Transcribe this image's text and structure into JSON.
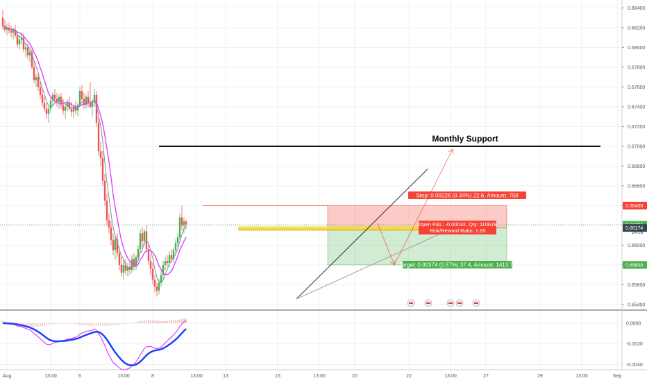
{
  "chart_data": {
    "type": "candlestick",
    "price_axis": {
      "ticks": [
        "0.68400",
        "0.68200",
        "0.68000",
        "0.67800",
        "0.67600",
        "0.67400",
        "0.67200",
        "0.67000",
        "0.66800",
        "0.66600",
        "0.66400",
        "0.66200",
        "0.66000",
        "0.65800",
        "0.65600",
        "0.65400"
      ],
      "range": [
        0.6535,
        0.6848
      ],
      "stop_label": "0.66400",
      "current_label": "0.66206",
      "current_countdown": "24:05",
      "entry_label": "0.66174",
      "target_label": "0.65800"
    },
    "macd_axis": {
      "ticks": [
        "0.0000",
        "-0.0020",
        "-0.0040"
      ],
      "range": [
        -0.0045,
        0.0012
      ]
    },
    "time_axis": {
      "ticks": [
        {
          "label": "Aug",
          "bar": 2
        },
        {
          "label": "13:00",
          "bar": 23
        },
        {
          "label": "6",
          "bar": 37
        },
        {
          "label": "13:00",
          "bar": 58
        },
        {
          "label": "8",
          "bar": 72
        },
        {
          "label": "13:00",
          "bar": 93
        },
        {
          "label": "13",
          "bar": 107
        },
        {
          "label": "15",
          "bar": 132
        },
        {
          "label": "13:00",
          "bar": 152
        },
        {
          "label": "20",
          "bar": 169
        },
        {
          "label": "22",
          "bar": 195
        },
        {
          "label": "13:00",
          "bar": 215
        },
        {
          "label": "27",
          "bar": 232
        },
        {
          "label": "29",
          "bar": 258
        },
        {
          "label": "13:00",
          "bar": 278
        },
        {
          "label": "Sep",
          "bar": 295
        }
      ]
    },
    "candles": [
      [
        0.683,
        0.6838,
        0.6818,
        0.6822
      ],
      [
        0.6822,
        0.6828,
        0.6815,
        0.6818
      ],
      [
        0.6818,
        0.6824,
        0.6812,
        0.682
      ],
      [
        0.682,
        0.6825,
        0.6814,
        0.6817
      ],
      [
        0.6817,
        0.6822,
        0.681,
        0.6815
      ],
      [
        0.6815,
        0.682,
        0.6808,
        0.6818
      ],
      [
        0.6818,
        0.6823,
        0.681,
        0.6812
      ],
      [
        0.6812,
        0.6816,
        0.68,
        0.6803
      ],
      [
        0.6803,
        0.6812,
        0.6798,
        0.6808
      ],
      [
        0.6808,
        0.6815,
        0.6803,
        0.681
      ],
      [
        0.681,
        0.6814,
        0.6795,
        0.6798
      ],
      [
        0.6798,
        0.6804,
        0.679,
        0.68
      ],
      [
        0.68,
        0.6804,
        0.6788,
        0.6792
      ],
      [
        0.6792,
        0.6798,
        0.6785,
        0.6795
      ],
      [
        0.6795,
        0.6798,
        0.6778,
        0.678
      ],
      [
        0.678,
        0.6786,
        0.6764,
        0.6767
      ],
      [
        0.6767,
        0.6773,
        0.676,
        0.677
      ],
      [
        0.677,
        0.6775,
        0.6756,
        0.676
      ],
      [
        0.676,
        0.6766,
        0.6748,
        0.6752
      ],
      [
        0.6752,
        0.6758,
        0.674,
        0.6744
      ],
      [
        0.6744,
        0.675,
        0.6735,
        0.6738
      ],
      [
        0.6738,
        0.6744,
        0.6728,
        0.6733
      ],
      [
        0.6733,
        0.674,
        0.6724,
        0.6738
      ],
      [
        0.6738,
        0.675,
        0.6734,
        0.6746
      ],
      [
        0.6746,
        0.6755,
        0.674,
        0.6752
      ],
      [
        0.6752,
        0.6758,
        0.6744,
        0.6748
      ],
      [
        0.6748,
        0.6754,
        0.674,
        0.6745
      ],
      [
        0.6745,
        0.6752,
        0.6738,
        0.675
      ],
      [
        0.675,
        0.6754,
        0.6738,
        0.6742
      ],
      [
        0.6742,
        0.6748,
        0.6732,
        0.6736
      ],
      [
        0.6736,
        0.6742,
        0.6728,
        0.674
      ],
      [
        0.674,
        0.6748,
        0.6735,
        0.6744
      ],
      [
        0.6744,
        0.675,
        0.6736,
        0.6738
      ],
      [
        0.6738,
        0.6745,
        0.673,
        0.6735
      ],
      [
        0.6735,
        0.6742,
        0.6728,
        0.674
      ],
      [
        0.674,
        0.6746,
        0.6732,
        0.6736
      ],
      [
        0.6736,
        0.6744,
        0.673,
        0.6742
      ],
      [
        0.6742,
        0.676,
        0.674,
        0.6756
      ],
      [
        0.6756,
        0.6762,
        0.6745,
        0.6748
      ],
      [
        0.6748,
        0.6754,
        0.6738,
        0.6742
      ],
      [
        0.6742,
        0.6752,
        0.6738,
        0.675
      ],
      [
        0.675,
        0.6756,
        0.674,
        0.6744
      ],
      [
        0.6744,
        0.6765,
        0.6738,
        0.674
      ],
      [
        0.674,
        0.6748,
        0.673,
        0.6745
      ],
      [
        0.6745,
        0.6758,
        0.674,
        0.6752
      ],
      [
        0.6752,
        0.6756,
        0.672,
        0.6724
      ],
      [
        0.6724,
        0.673,
        0.669,
        0.6695
      ],
      [
        0.6695,
        0.6705,
        0.668,
        0.6688
      ],
      [
        0.6688,
        0.6695,
        0.666,
        0.6665
      ],
      [
        0.6665,
        0.6672,
        0.664,
        0.6645
      ],
      [
        0.6645,
        0.6652,
        0.662,
        0.6625
      ],
      [
        0.6625,
        0.6632,
        0.6612,
        0.6618
      ],
      [
        0.6618,
        0.6625,
        0.66,
        0.6605
      ],
      [
        0.6605,
        0.6612,
        0.659,
        0.6595
      ],
      [
        0.6595,
        0.661,
        0.6585,
        0.6606
      ],
      [
        0.6606,
        0.6612,
        0.6588,
        0.6592
      ],
      [
        0.6592,
        0.6598,
        0.6575,
        0.658
      ],
      [
        0.658,
        0.6588,
        0.6568,
        0.6572
      ],
      [
        0.6572,
        0.6585,
        0.6565,
        0.658
      ],
      [
        0.658,
        0.6586,
        0.657,
        0.6574
      ],
      [
        0.6574,
        0.6582,
        0.6568,
        0.6578
      ],
      [
        0.6578,
        0.6584,
        0.657,
        0.6575
      ],
      [
        0.6575,
        0.659,
        0.6572,
        0.6586
      ],
      [
        0.6586,
        0.6592,
        0.6574,
        0.6578
      ],
      [
        0.6578,
        0.659,
        0.6575,
        0.6588
      ],
      [
        0.6588,
        0.66,
        0.6584,
        0.6596
      ],
      [
        0.6596,
        0.6616,
        0.6592,
        0.6612
      ],
      [
        0.6612,
        0.6618,
        0.6598,
        0.6604
      ],
      [
        0.6604,
        0.6616,
        0.66,
        0.6614
      ],
      [
        0.6614,
        0.662,
        0.6592,
        0.6596
      ],
      [
        0.6596,
        0.6602,
        0.658,
        0.6584
      ],
      [
        0.6584,
        0.659,
        0.657,
        0.6576
      ],
      [
        0.6576,
        0.6582,
        0.656,
        0.6565
      ],
      [
        0.6565,
        0.657,
        0.6552,
        0.6558
      ],
      [
        0.6558,
        0.6562,
        0.6548,
        0.6554
      ],
      [
        0.6554,
        0.6566,
        0.655,
        0.6562
      ],
      [
        0.6562,
        0.6574,
        0.6558,
        0.657
      ],
      [
        0.657,
        0.6584,
        0.6566,
        0.658
      ],
      [
        0.658,
        0.6588,
        0.6574,
        0.6584
      ],
      [
        0.6584,
        0.659,
        0.6578,
        0.6582
      ],
      [
        0.6582,
        0.6594,
        0.6578,
        0.659
      ],
      [
        0.659,
        0.6596,
        0.6582,
        0.6586
      ],
      [
        0.6586,
        0.6598,
        0.6582,
        0.6595
      ],
      [
        0.6595,
        0.6606,
        0.659,
        0.6602
      ],
      [
        0.6602,
        0.6612,
        0.6598,
        0.6608
      ],
      [
        0.6608,
        0.6632,
        0.6604,
        0.6628
      ],
      [
        0.6628,
        0.664,
        0.6615,
        0.662
      ],
      [
        0.662,
        0.6628,
        0.6612,
        0.6624
      ],
      [
        0.6624,
        0.6626,
        0.6616,
        0.6621
      ]
    ],
    "moving_averages": [
      {
        "color": "#e040fb",
        "length": 9
      },
      {
        "color": "#78909c",
        "length": 5
      }
    ],
    "drawings": {
      "monthly_support": {
        "label": "Monthly Support",
        "price": 0.67,
        "from_bar": 75,
        "to_bar": 287
      },
      "support_zone": {
        "price_top": 0.66175,
        "price_bottom": 0.6616,
        "from_bar": 113,
        "to_bar": 224
      },
      "position": {
        "type": "short",
        "entry": 0.66174,
        "stop": 0.664,
        "target": 0.658,
        "from_bar": 156,
        "to_bar": 242,
        "stop_text": "Stop: 0.00226 (0.34%) 22.6, Amount: 750",
        "target_text": "Target: 0.00374 (0.57%) 37.4, Amount: 1413.72",
        "pnl_text": "Open P&L: -0.00032, Qty: 110619",
        "rr_text": "Risk/Reward Ratio: 1.65"
      }
    },
    "macd": {
      "histogram": [
        0.0001,
        8e-05,
        6e-05,
        4e-05,
        3e-05,
        2e-05,
        1e-05,
        -1e-05,
        -3e-05,
        -5e-05,
        -8e-05,
        -0.0001,
        -0.00012,
        -0.00014,
        -0.00015,
        -0.00016,
        -0.00017,
        -0.00016,
        -0.00015,
        -0.00014,
        -0.00012,
        -0.0001,
        -8e-05,
        -6e-05,
        -5e-05,
        -4e-05,
        -3e-05,
        -2e-05,
        -2e-05,
        -1e-05,
        -1e-05,
        -2e-05,
        -3e-05,
        -4e-05,
        -4e-05,
        -5e-05,
        -6e-05,
        -7e-05,
        -8e-05,
        -9e-05,
        -0.0001,
        -0.00011,
        -0.00012,
        -0.00013,
        -0.00012,
        -0.00012,
        -0.00013,
        -0.00014,
        -0.00014,
        -0.00013,
        -0.00012,
        -0.00011,
        -0.0001,
        -9e-05,
        -8e-05,
        -7e-05,
        -6e-05,
        -5e-05,
        -4e-05,
        -3e-05,
        -2e-05,
        -1e-05,
        1e-05,
        3e-05,
        5e-05,
        7e-05,
        9e-05,
        0.0001,
        0.00011,
        0.00012,
        0.00013,
        0.00014,
        0.00013,
        0.00012,
        0.00011,
        0.0001,
        9e-05,
        9e-05,
        0.0001,
        0.00011,
        0.00012,
        0.00013,
        0.00013,
        0.00014,
        0.00015,
        0.00016,
        0.00018,
        0.0002,
        0.00022
      ]
    }
  }
}
